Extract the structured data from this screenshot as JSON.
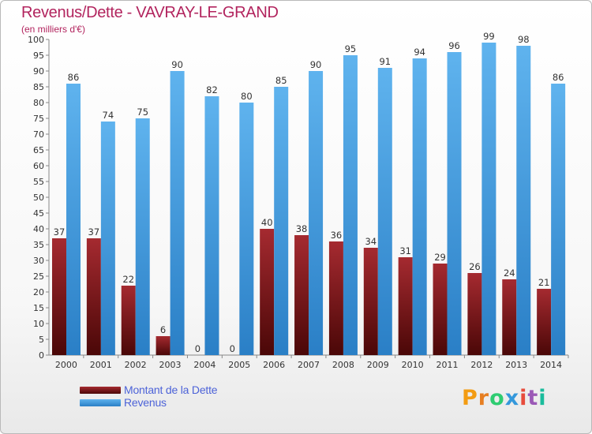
{
  "title": "Revenus/Dette - VAVRAY-LE-GRAND",
  "subtitle": "(en milliers d'€)",
  "legend": {
    "dette": "Montant de la Dette",
    "revenus": "Revenus"
  },
  "logo": "Proxiti",
  "colors": {
    "dette": "#8a1f25",
    "revenus": "#4aa3e4",
    "title": "#b2245e",
    "legend_text": "#4d63d8"
  },
  "chart_data": {
    "type": "bar",
    "categories": [
      "2000",
      "2001",
      "2002",
      "2003",
      "2004",
      "2005",
      "2006",
      "2007",
      "2008",
      "2009",
      "2010",
      "2011",
      "2012",
      "2013",
      "2014"
    ],
    "series": [
      {
        "name": "Montant de la Dette",
        "values": [
          37,
          37,
          22,
          6,
          0,
          0,
          40,
          38,
          36,
          34,
          31,
          29,
          26,
          24,
          21
        ]
      },
      {
        "name": "Revenus",
        "values": [
          86,
          74,
          75,
          90,
          82,
          80,
          85,
          90,
          95,
          91,
          94,
          96,
          99,
          98,
          86
        ]
      }
    ],
    "ylim": [
      0,
      100
    ],
    "ytick_step": 5,
    "grid": false,
    "legend_position": "bottom-left"
  }
}
